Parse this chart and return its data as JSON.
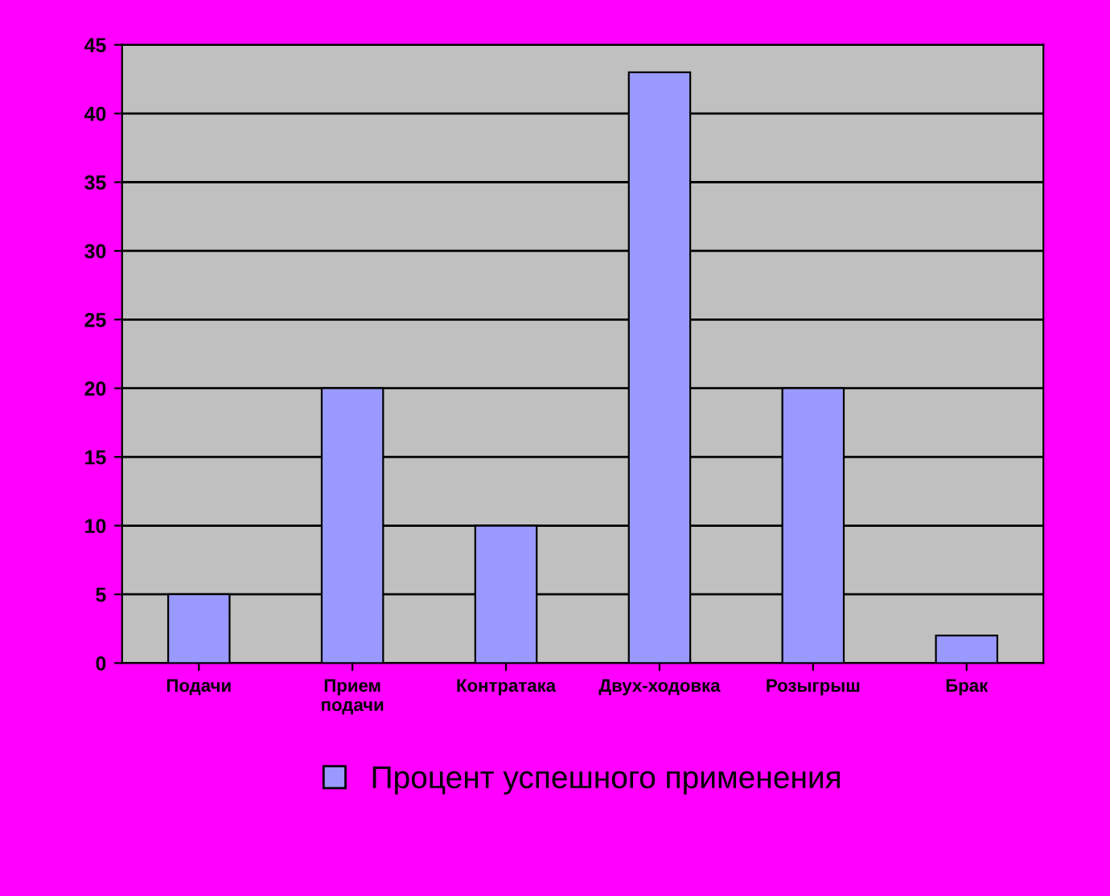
{
  "chart_data": {
    "type": "bar",
    "categories": [
      "Подачи",
      "Прием\nподачи",
      "Контратака",
      "Двух-ходовка",
      "Розыгрыш",
      "Брак"
    ],
    "series": [
      {
        "name": "Процент успешного применения",
        "color": "#9999ff",
        "values": [
          5,
          20,
          10,
          43,
          20,
          2
        ]
      }
    ],
    "ylim": [
      0,
      45
    ],
    "yticks": [
      0,
      5,
      10,
      15,
      20,
      25,
      30,
      35,
      40,
      45
    ],
    "grid": "y",
    "legend": "bottom"
  }
}
